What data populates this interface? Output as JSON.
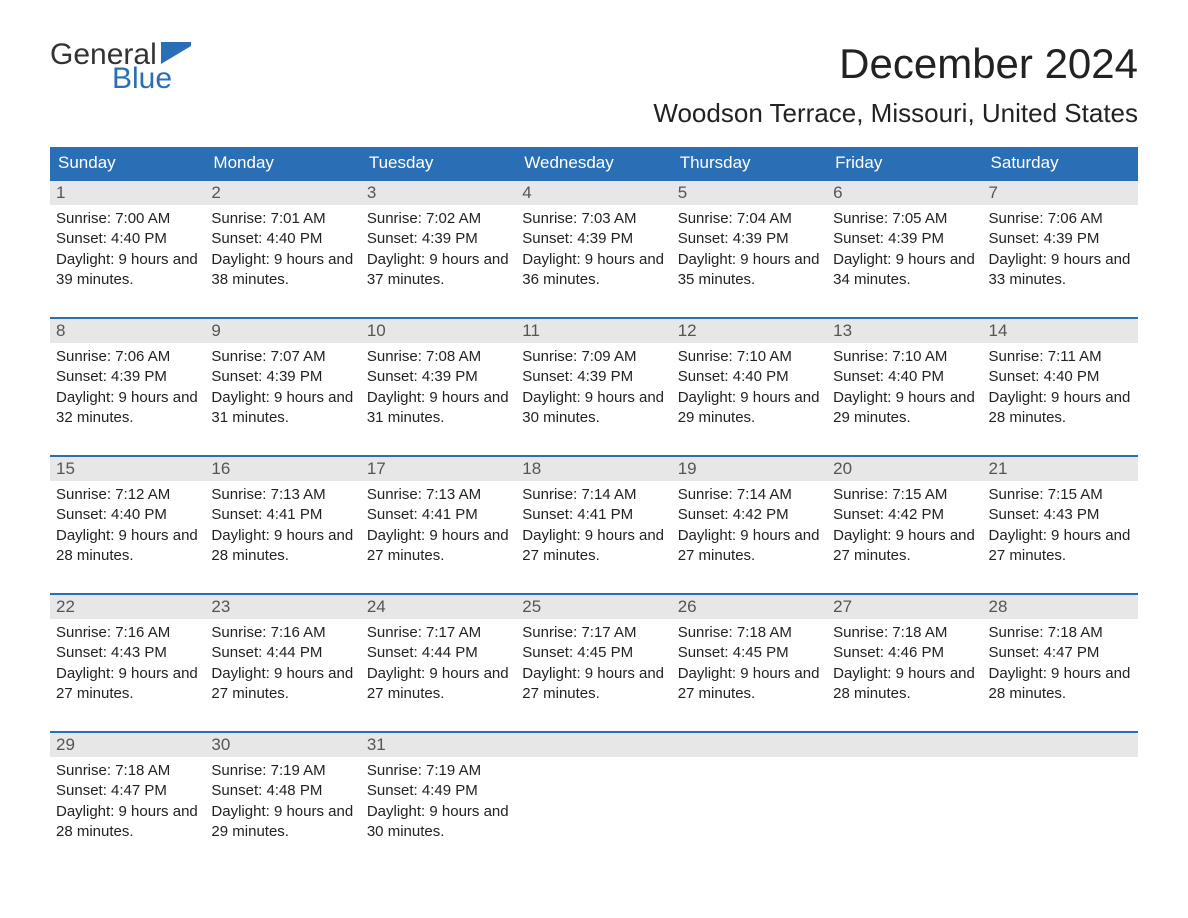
{
  "brand": {
    "general": "General",
    "blue": "Blue",
    "flag_color": "#2a6fb5"
  },
  "title": "December 2024",
  "location": "Woodson Terrace, Missouri, United States",
  "colors": {
    "header_bg": "#2a6fb5",
    "daynum_bg": "#e7e7e7",
    "text": "#222222",
    "rule": "#2a6fb5"
  },
  "day_names": [
    "Sunday",
    "Monday",
    "Tuesday",
    "Wednesday",
    "Thursday",
    "Friday",
    "Saturday"
  ],
  "weeks": [
    [
      {
        "n": "1",
        "sunrise": "7:00 AM",
        "sunset": "4:40 PM",
        "dl": "9 hours and 39 minutes."
      },
      {
        "n": "2",
        "sunrise": "7:01 AM",
        "sunset": "4:40 PM",
        "dl": "9 hours and 38 minutes."
      },
      {
        "n": "3",
        "sunrise": "7:02 AM",
        "sunset": "4:39 PM",
        "dl": "9 hours and 37 minutes."
      },
      {
        "n": "4",
        "sunrise": "7:03 AM",
        "sunset": "4:39 PM",
        "dl": "9 hours and 36 minutes."
      },
      {
        "n": "5",
        "sunrise": "7:04 AM",
        "sunset": "4:39 PM",
        "dl": "9 hours and 35 minutes."
      },
      {
        "n": "6",
        "sunrise": "7:05 AM",
        "sunset": "4:39 PM",
        "dl": "9 hours and 34 minutes."
      },
      {
        "n": "7",
        "sunrise": "7:06 AM",
        "sunset": "4:39 PM",
        "dl": "9 hours and 33 minutes."
      }
    ],
    [
      {
        "n": "8",
        "sunrise": "7:06 AM",
        "sunset": "4:39 PM",
        "dl": "9 hours and 32 minutes."
      },
      {
        "n": "9",
        "sunrise": "7:07 AM",
        "sunset": "4:39 PM",
        "dl": "9 hours and 31 minutes."
      },
      {
        "n": "10",
        "sunrise": "7:08 AM",
        "sunset": "4:39 PM",
        "dl": "9 hours and 31 minutes."
      },
      {
        "n": "11",
        "sunrise": "7:09 AM",
        "sunset": "4:39 PM",
        "dl": "9 hours and 30 minutes."
      },
      {
        "n": "12",
        "sunrise": "7:10 AM",
        "sunset": "4:40 PM",
        "dl": "9 hours and 29 minutes."
      },
      {
        "n": "13",
        "sunrise": "7:10 AM",
        "sunset": "4:40 PM",
        "dl": "9 hours and 29 minutes."
      },
      {
        "n": "14",
        "sunrise": "7:11 AM",
        "sunset": "4:40 PM",
        "dl": "9 hours and 28 minutes."
      }
    ],
    [
      {
        "n": "15",
        "sunrise": "7:12 AM",
        "sunset": "4:40 PM",
        "dl": "9 hours and 28 minutes."
      },
      {
        "n": "16",
        "sunrise": "7:13 AM",
        "sunset": "4:41 PM",
        "dl": "9 hours and 28 minutes."
      },
      {
        "n": "17",
        "sunrise": "7:13 AM",
        "sunset": "4:41 PM",
        "dl": "9 hours and 27 minutes."
      },
      {
        "n": "18",
        "sunrise": "7:14 AM",
        "sunset": "4:41 PM",
        "dl": "9 hours and 27 minutes."
      },
      {
        "n": "19",
        "sunrise": "7:14 AM",
        "sunset": "4:42 PM",
        "dl": "9 hours and 27 minutes."
      },
      {
        "n": "20",
        "sunrise": "7:15 AM",
        "sunset": "4:42 PM",
        "dl": "9 hours and 27 minutes."
      },
      {
        "n": "21",
        "sunrise": "7:15 AM",
        "sunset": "4:43 PM",
        "dl": "9 hours and 27 minutes."
      }
    ],
    [
      {
        "n": "22",
        "sunrise": "7:16 AM",
        "sunset": "4:43 PM",
        "dl": "9 hours and 27 minutes."
      },
      {
        "n": "23",
        "sunrise": "7:16 AM",
        "sunset": "4:44 PM",
        "dl": "9 hours and 27 minutes."
      },
      {
        "n": "24",
        "sunrise": "7:17 AM",
        "sunset": "4:44 PM",
        "dl": "9 hours and 27 minutes."
      },
      {
        "n": "25",
        "sunrise": "7:17 AM",
        "sunset": "4:45 PM",
        "dl": "9 hours and 27 minutes."
      },
      {
        "n": "26",
        "sunrise": "7:18 AM",
        "sunset": "4:45 PM",
        "dl": "9 hours and 27 minutes."
      },
      {
        "n": "27",
        "sunrise": "7:18 AM",
        "sunset": "4:46 PM",
        "dl": "9 hours and 28 minutes."
      },
      {
        "n": "28",
        "sunrise": "7:18 AM",
        "sunset": "4:47 PM",
        "dl": "9 hours and 28 minutes."
      }
    ],
    [
      {
        "n": "29",
        "sunrise": "7:18 AM",
        "sunset": "4:47 PM",
        "dl": "9 hours and 28 minutes."
      },
      {
        "n": "30",
        "sunrise": "7:19 AM",
        "sunset": "4:48 PM",
        "dl": "9 hours and 29 minutes."
      },
      {
        "n": "31",
        "sunrise": "7:19 AM",
        "sunset": "4:49 PM",
        "dl": "9 hours and 30 minutes."
      },
      null,
      null,
      null,
      null
    ]
  ],
  "labels": {
    "sunrise_prefix": "Sunrise: ",
    "sunset_prefix": "Sunset: ",
    "daylight_prefix": "Daylight: "
  }
}
